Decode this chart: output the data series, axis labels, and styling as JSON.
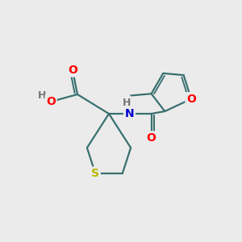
{
  "background_color": "#ebebeb",
  "bond_color": "#3a7070",
  "bond_width": 1.6,
  "atom_colors": {
    "O": "#ff0000",
    "N": "#0000cc",
    "S": "#b8b800",
    "H": "#555555",
    "C": "#3a7070"
  },
  "figsize": [
    3.0,
    3.0
  ],
  "dpi": 100,
  "xlim": [
    0,
    10
  ],
  "ylim": [
    0,
    10
  ]
}
